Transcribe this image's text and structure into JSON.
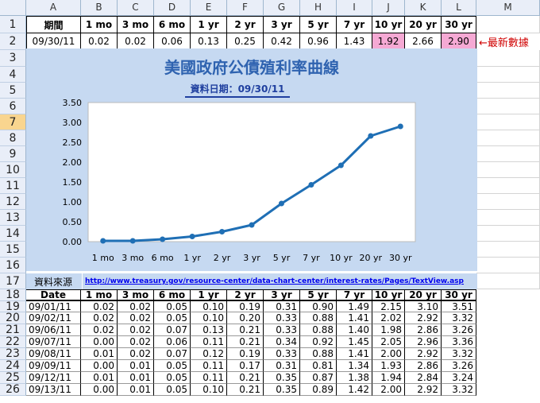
{
  "columns": [
    "A",
    "B",
    "C",
    "D",
    "E",
    "F",
    "G",
    "H",
    "I",
    "J",
    "K",
    "L",
    "M"
  ],
  "rows": [
    "1",
    "2",
    "3",
    "4",
    "5",
    "6",
    "7",
    "8",
    "9",
    "10",
    "11",
    "12",
    "13",
    "14",
    "15",
    "16",
    "17",
    "18",
    "19",
    "20",
    "21",
    "22",
    "23",
    "24",
    "25",
    "26"
  ],
  "selected_row": "7",
  "header_row": {
    "label": "期間",
    "maturities": [
      "1 mo",
      "3 mo",
      "6 mo",
      "1 yr",
      "2 yr",
      "3 yr",
      "5 yr",
      "7 yr",
      "10 yr",
      "20 yr",
      "30 yr"
    ]
  },
  "latest_row": {
    "date": "09/30/11",
    "values": [
      "0.02",
      "0.02",
      "0.06",
      "0.13",
      "0.25",
      "0.42",
      "0.96",
      "1.43",
      "1.92",
      "2.66",
      "2.90"
    ],
    "note": "←最新數據"
  },
  "chart_data": {
    "type": "line",
    "title": "美國政府公債殖利率曲線",
    "subtitle": "資料日期：09/30/11",
    "categories": [
      "1 mo",
      "3 mo",
      "6 mo",
      "1 yr",
      "2 yr",
      "3 yr",
      "5 yr",
      "7 yr",
      "10 yr",
      "20 yr",
      "30 yr"
    ],
    "values": [
      0.02,
      0.02,
      0.06,
      0.13,
      0.25,
      0.42,
      0.96,
      1.43,
      1.92,
      2.66,
      2.9
    ],
    "ylim": [
      0,
      3.5
    ],
    "yticks": [
      "0.00",
      "0.50",
      "1.00",
      "1.50",
      "2.00",
      "2.50",
      "3.00",
      "3.50"
    ],
    "grid": false,
    "line_color": "#1f6fb5"
  },
  "source_row": {
    "label": "資料來源",
    "url": "http://www.treasury.gov/resource-center/data-chart-center/interest-rates/Pages/TextView.aspx?data=yield"
  },
  "table": {
    "headers": [
      "Date",
      "1 mo",
      "3 mo",
      "6 mo",
      "1 yr",
      "2 yr",
      "3 yr",
      "5 yr",
      "7 yr",
      "10 yr",
      "20 yr",
      "30 yr"
    ],
    "rows": [
      [
        "09/01/11",
        "0.02",
        "0.02",
        "0.05",
        "0.10",
        "0.19",
        "0.31",
        "0.90",
        "1.49",
        "2.15",
        "3.10",
        "3.51"
      ],
      [
        "09/02/11",
        "0.02",
        "0.02",
        "0.05",
        "0.10",
        "0.20",
        "0.33",
        "0.88",
        "1.41",
        "2.02",
        "2.92",
        "3.32"
      ],
      [
        "09/06/11",
        "0.02",
        "0.02",
        "0.07",
        "0.13",
        "0.21",
        "0.33",
        "0.88",
        "1.40",
        "1.98",
        "2.86",
        "3.26"
      ],
      [
        "09/07/11",
        "0.00",
        "0.02",
        "0.06",
        "0.11",
        "0.21",
        "0.34",
        "0.92",
        "1.45",
        "2.05",
        "2.96",
        "3.36"
      ],
      [
        "09/08/11",
        "0.01",
        "0.02",
        "0.07",
        "0.12",
        "0.19",
        "0.33",
        "0.88",
        "1.41",
        "2.00",
        "2.92",
        "3.32"
      ],
      [
        "09/09/11",
        "0.00",
        "0.01",
        "0.05",
        "0.11",
        "0.17",
        "0.31",
        "0.81",
        "1.34",
        "1.93",
        "2.86",
        "3.26"
      ],
      [
        "09/12/11",
        "0.01",
        "0.01",
        "0.05",
        "0.11",
        "0.21",
        "0.35",
        "0.87",
        "1.38",
        "1.94",
        "2.84",
        "3.24"
      ],
      [
        "09/13/11",
        "0.00",
        "0.01",
        "0.05",
        "0.10",
        "0.21",
        "0.35",
        "0.89",
        "1.42",
        "2.00",
        "2.92",
        "3.32"
      ]
    ]
  }
}
